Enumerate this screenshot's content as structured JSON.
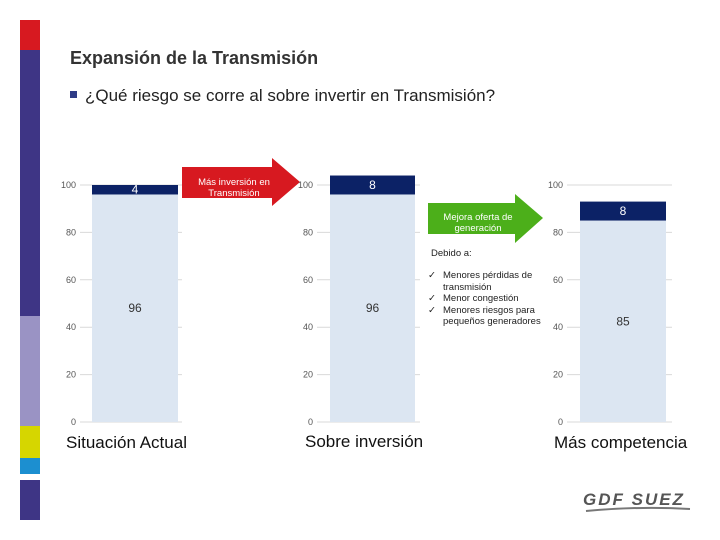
{
  "slide": {
    "title": "Expansión de la Transmisión",
    "question": "¿Qué riesgo se corre al sobre invertir en Transmisión?"
  },
  "arrows": {
    "left": {
      "line1": "Más inversión en",
      "line2": "Transmisión",
      "color": "#d71920"
    },
    "right": {
      "line1": "Mejora oferta de",
      "line2": "generación",
      "color": "#4caf1a"
    }
  },
  "debido": "Debido a:",
  "reasons": [
    {
      "line1": "Menores pérdidas de",
      "line2": "transmisión"
    },
    {
      "line1": "Menor congestión",
      "line2": ""
    },
    {
      "line1": "Menores riesgos para",
      "line2": "pequeños generadores"
    }
  ],
  "check_glyph": "✓",
  "logo_text": "GDF SUEZ",
  "colors": {
    "top_segment": "#0c2266",
    "bottom_segment": "#dce6f2",
    "stripe_red": "#d71920",
    "stripe_purple": "#3e3585",
    "stripe_lavender": "#9a93c4",
    "stripe_yellow": "#d6d600",
    "stripe_blue": "#1c8fd0"
  },
  "chart_data": [
    {
      "type": "bar",
      "stacked": true,
      "caption": "Situación Actual",
      "ylim": [
        0,
        100
      ],
      "yticks": [
        "0",
        "20",
        "40",
        "60",
        "80",
        "100"
      ],
      "series": [
        {
          "values": [
            96
          ],
          "label": "96"
        },
        {
          "values": [
            4
          ],
          "label": "4"
        }
      ]
    },
    {
      "type": "bar",
      "stacked": true,
      "caption": "Sobre inversión",
      "ylim": [
        0,
        100
      ],
      "yticks": [
        "0",
        "20",
        "40",
        "60",
        "80",
        "100"
      ],
      "series": [
        {
          "values": [
            96
          ],
          "label": "96"
        },
        {
          "values": [
            8
          ],
          "label": "8"
        }
      ]
    },
    {
      "type": "bar",
      "stacked": true,
      "caption": "Más competencia",
      "ylim": [
        0,
        100
      ],
      "yticks": [
        "0",
        "20",
        "40",
        "60",
        "80",
        "100"
      ],
      "series": [
        {
          "values": [
            85
          ],
          "label": "85"
        },
        {
          "values": [
            8
          ],
          "label": "8"
        }
      ]
    }
  ]
}
